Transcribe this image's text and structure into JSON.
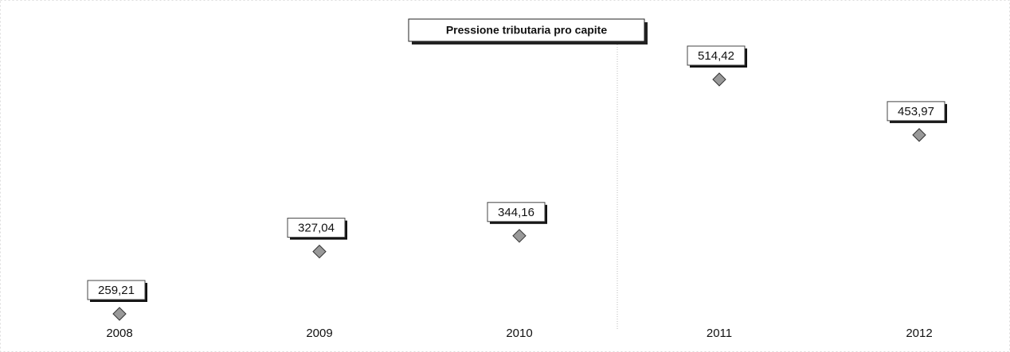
{
  "chart_data": {
    "type": "line",
    "title": "Pressione tributaria pro capite",
    "categories": [
      "2008",
      "2009",
      "2010",
      "2011",
      "2012"
    ],
    "series": [
      {
        "name": null,
        "color": "#222222",
        "values": [
          259.21,
          327.04,
          344.16,
          514.42,
          453.97
        ],
        "value_labels": [
          "259,21",
          "327,04",
          "344,16",
          "514,42",
          "453,97"
        ]
      }
    ]
  }
}
